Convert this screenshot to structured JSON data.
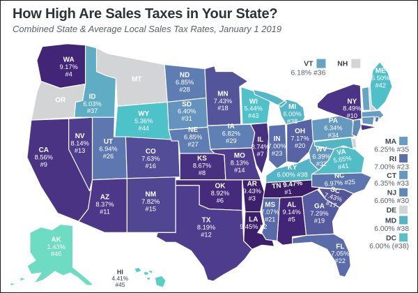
{
  "title": "How High Are Sales Taxes in Your State?",
  "subtitle": "Combined State & Average Local Sales Tax Rates, January 1 2019",
  "colors": {
    "background": "#ffffff",
    "frame_border": "#1a1a1a",
    "state_border": "#ffffff",
    "no_tax_gray": "#d2d4d6",
    "title": "#2e3339",
    "subtitle": "#5a6169",
    "map_label": "#ffffff",
    "hi_label": "#3f464d",
    "legend_abbr": "#3d434b",
    "legend_value": "#5a6169"
  },
  "map": {
    "states": [
      {
        "id": "WA",
        "abbr": "WA",
        "rate": "9.17%",
        "rank": "#4",
        "color": "#422577",
        "label_lines": [
          "WA",
          "9.17%",
          "#4"
        ]
      },
      {
        "id": "OR",
        "abbr": "OR",
        "rate": "",
        "rank": "",
        "color": "#d2d4d6",
        "label_lines": [
          "OR"
        ]
      },
      {
        "id": "CA",
        "abbr": "CA",
        "rate": "8.56%",
        "rank": "#9",
        "color": "#4a3383",
        "label_lines": [
          "CA",
          "8.56%",
          "#9"
        ]
      },
      {
        "id": "NV",
        "abbr": "NV",
        "rate": "8.14%",
        "rank": "#13",
        "color": "#4e3d8d",
        "label_lines": [
          "NV",
          "8.14%",
          "#13"
        ]
      },
      {
        "id": "ID",
        "abbr": "ID",
        "rate": "6.03%",
        "rank": "#37",
        "color": "#5fadc5",
        "label_lines": [
          "ID",
          "6.03%",
          "#37"
        ]
      },
      {
        "id": "MT",
        "abbr": "MT",
        "rate": "",
        "rank": "",
        "color": "#d2d4d6",
        "label_lines": [
          "MT"
        ]
      },
      {
        "id": "WY",
        "abbr": "WY",
        "rate": "5.36%",
        "rank": "#44",
        "color": "#4ec2c9",
        "label_lines": [
          "WY",
          "5.36%",
          "#44"
        ]
      },
      {
        "id": "UT",
        "abbr": "UT",
        "rate": "6.94%",
        "rank": "#26",
        "color": "#5d78b1",
        "label_lines": [
          "UT",
          "6.94%",
          "#26"
        ]
      },
      {
        "id": "CO",
        "abbr": "CO",
        "rate": "7.63%",
        "rank": "#16",
        "color": "#534c96",
        "label_lines": [
          "CO",
          "7.63%",
          "#16"
        ]
      },
      {
        "id": "AZ",
        "abbr": "AZ",
        "rate": "8.37%",
        "rank": "#11",
        "color": "#4c3788",
        "label_lines": [
          "AZ",
          "8.37%",
          "#11"
        ]
      },
      {
        "id": "NM",
        "abbr": "NM",
        "rate": "7.82%",
        "rank": "#15",
        "color": "#514692",
        "label_lines": [
          "NM",
          "7.82%",
          "#15"
        ]
      },
      {
        "id": "ND",
        "abbr": "ND",
        "rate": "6.85%",
        "rank": "#28",
        "color": "#5e7eb3",
        "label_lines": [
          "ND",
          "6.85%",
          "#28"
        ]
      },
      {
        "id": "SD",
        "abbr": "SD",
        "rate": "6.40%",
        "rank": "#31",
        "color": "#6494bd",
        "label_lines": [
          "SD",
          "6.40%",
          "#31"
        ]
      },
      {
        "id": "NE",
        "abbr": "NE",
        "rate": "6.85%",
        "rank": "#27",
        "color": "#5e7eb3",
        "label_lines": [
          "NE",
          "6.85%",
          "#27"
        ]
      },
      {
        "id": "KS",
        "abbr": "KS",
        "rate": "8.67%",
        "rank": "#8",
        "color": "#493181",
        "label_lines": [
          "KS",
          "8.67%",
          "#8"
        ]
      },
      {
        "id": "OK",
        "abbr": "OK",
        "rate": "8.92%",
        "rank": "#6",
        "color": "#462b7d",
        "label_lines": [
          "OK",
          "8.92%",
          "#6"
        ]
      },
      {
        "id": "TX",
        "abbr": "TX",
        "rate": "8.19%",
        "rank": "#12",
        "color": "#4e3c8c",
        "label_lines": [
          "TX",
          "8.19%",
          "#12"
        ]
      },
      {
        "id": "MN",
        "abbr": "MN",
        "rate": "7.43%",
        "rank": "#18",
        "color": "#54549b",
        "label_lines": [
          "MN",
          "7.43%",
          "#18"
        ]
      },
      {
        "id": "WI",
        "abbr": "WI",
        "rate": "5.44%",
        "rank": "#43",
        "color": "#4fc1c8",
        "label_lines": [
          "WI",
          "5.44%",
          "#43"
        ]
      },
      {
        "id": "IA",
        "abbr": "IA",
        "rate": "6.82%",
        "rank": "#29",
        "color": "#5f80b4",
        "label_lines": [
          "IA",
          "6.82%",
          "#29"
        ]
      },
      {
        "id": "MO",
        "abbr": "MO",
        "rate": "8.13%",
        "rank": "#14",
        "color": "#4f3e8d",
        "label_lines": [
          "MO",
          "8.13%",
          "#14"
        ]
      },
      {
        "id": "AR",
        "abbr": "AR",
        "rate": "9.43%",
        "rank": "#3",
        "color": "#3d206c",
        "label_lines": [
          "AR",
          "9.43%",
          "#3"
        ]
      },
      {
        "id": "LA",
        "abbr": "LA",
        "rate": "9.45%",
        "rank": "#2",
        "color": "#3c1e6b",
        "label_lines": [
          "LA",
          "9.45% #2"
        ]
      },
      {
        "id": "IL",
        "abbr": "IL",
        "rate": "8.74%",
        "rank": "#7",
        "color": "#483080",
        "label_lines": [
          "IL",
          "8.74%",
          "#7"
        ]
      },
      {
        "id": "MI",
        "abbr": "MI",
        "rate": "6.00%",
        "rank": "#38",
        "color": "#53b5c5",
        "label_lines": [
          "MI",
          "6.00%",
          "#38"
        ]
      },
      {
        "id": "IN",
        "abbr": "IN",
        "rate": "7.00%",
        "rank": "#23",
        "color": "#5a6fac",
        "label_lines": [
          "IN",
          "7.00%",
          "#23"
        ]
      },
      {
        "id": "OH",
        "abbr": "OH",
        "rate": "7.17%",
        "rank": "#20",
        "color": "#5763a4",
        "label_lines": [
          "OH",
          "7.17%",
          "#20"
        ]
      },
      {
        "id": "KY",
        "abbr": "KY",
        "rate": "6.00%",
        "rank": "#38",
        "color": "#53b5c5",
        "label_lines": [
          "KY",
          "6.00% #38"
        ]
      },
      {
        "id": "TN",
        "abbr": "TN",
        "rate": "9.47%",
        "rank": "#1",
        "color": "#3b1d69",
        "label_lines": [
          "TN 9.47%",
          "#1"
        ]
      },
      {
        "id": "WV",
        "abbr": "WV",
        "rate": "6.39%",
        "rank": "#32",
        "color": "#6495bd",
        "label_lines": [
          "WV",
          "6.39%",
          "#32"
        ]
      },
      {
        "id": "VA",
        "abbr": "VA",
        "rate": "5.65%",
        "rank": "#41",
        "color": "#52bdc7",
        "label_lines": [
          "VA",
          "5.65%",
          "#41"
        ]
      },
      {
        "id": "NC",
        "abbr": "NC",
        "rate": "6.97%",
        "rank": "#25",
        "color": "#5c75af",
        "label_lines": [
          "NC",
          "6.97% #25"
        ]
      },
      {
        "id": "SC",
        "abbr": "SC",
        "rate": "7.43%",
        "rank": "#17",
        "color": "#54549b",
        "label_lines": [
          "SC",
          "7.43%",
          "#17"
        ]
      },
      {
        "id": "GA",
        "abbr": "GA",
        "rate": "7.29%",
        "rank": "#19",
        "color": "#565b9f",
        "label_lines": [
          "GA",
          "7.29%",
          "#19"
        ]
      },
      {
        "id": "AL",
        "abbr": "AL",
        "rate": "9.14%",
        "rank": "#5",
        "color": "#432578",
        "label_lines": [
          "AL",
          "9.14%",
          "#5"
        ]
      },
      {
        "id": "MS",
        "abbr": "MS",
        "rate": "7.07%",
        "rank": "#21",
        "color": "#596aa8",
        "label_lines": [
          "MS",
          "7.07%",
          "#21"
        ]
      },
      {
        "id": "FL",
        "abbr": "FL",
        "rate": "7.05%",
        "rank": "#22",
        "color": "#5a6caa",
        "label_lines": [
          "FL",
          "7.05%",
          "#22"
        ]
      },
      {
        "id": "PA",
        "abbr": "PA",
        "rate": "6.34%",
        "rank": "#34",
        "color": "#6699c0",
        "label_lines": [
          "PA",
          "6.34%",
          "#34"
        ]
      },
      {
        "id": "NY",
        "abbr": "NY",
        "rate": "8.49%",
        "rank": "#10",
        "color": "#4b3487",
        "label_lines": [
          "NY",
          "8.49%",
          "#10"
        ]
      },
      {
        "id": "VT",
        "abbr": "VT",
        "rate": "6.18%",
        "rank": "#36",
        "color": "#65a4c3",
        "label_lines": []
      },
      {
        "id": "NH",
        "abbr": "NH",
        "rate": "",
        "rank": "",
        "color": "#d2d4d6",
        "label_lines": []
      },
      {
        "id": "ME",
        "abbr": "ME",
        "rate": "5.50%",
        "rank": "#42",
        "color": "#50c0c8",
        "label_lines": [
          "ME",
          "5.50%",
          "#42"
        ]
      },
      {
        "id": "MA",
        "abbr": "MA",
        "rate": "6.25%",
        "rank": "#35",
        "color": "#679dc1",
        "label_lines": []
      },
      {
        "id": "CT",
        "abbr": "CT",
        "rate": "6.35%",
        "rank": "#33",
        "color": "#6598bf",
        "label_lines": []
      },
      {
        "id": "RI",
        "abbr": "RI",
        "rate": "7.00%",
        "rank": "#23",
        "color": "#5a6fac",
        "label_lines": []
      },
      {
        "id": "NJ",
        "abbr": "NJ",
        "rate": "6.60%",
        "rank": "#30",
        "color": "#6189b8",
        "label_lines": []
      },
      {
        "id": "DE",
        "abbr": "DE",
        "rate": "",
        "rank": "",
        "color": "#d2d4d6",
        "label_lines": []
      },
      {
        "id": "MD",
        "abbr": "MD",
        "rate": "6.00%",
        "rank": "#38",
        "color": "#54b6c5",
        "label_lines": []
      },
      {
        "id": "AK",
        "abbr": "AK",
        "rate": "1.43%",
        "rank": "#46",
        "color": "#6edcc3",
        "label_lines": [
          "AK",
          "1.43%",
          "#46"
        ]
      },
      {
        "id": "HI",
        "abbr": "HI",
        "rate": "4.41%",
        "rank": "#45",
        "color": "#59cfc6",
        "label_lines": [
          "HI",
          "4.41%",
          "#45"
        ]
      }
    ]
  },
  "legend_top": [
    {
      "id": "VT",
      "abbr": "VT",
      "detail": "6.18% #36",
      "color": "#65a4c3"
    },
    {
      "id": "NH",
      "abbr": "NH",
      "detail": "",
      "color": "#d2d4d6"
    }
  ],
  "legend_right": [
    {
      "id": "MA",
      "abbr": "MA",
      "detail": "6.25% #35",
      "color": "#679dc1"
    },
    {
      "id": "RI",
      "abbr": "RI",
      "detail": "7.00% #23",
      "color": "#5a6fac"
    },
    {
      "id": "CT",
      "abbr": "CT",
      "detail": "6.35% #33",
      "color": "#6598bf"
    },
    {
      "id": "NJ",
      "abbr": "NJ",
      "detail": "6.60% #30",
      "color": "#6189b8"
    },
    {
      "id": "DE",
      "abbr": "DE",
      "detail": "",
      "color": "#d2d4d6"
    },
    {
      "id": "MD",
      "abbr": "MD",
      "detail": "6.00% #38",
      "color": "#54b6c5"
    },
    {
      "id": "DC",
      "abbr": "DC",
      "detail": "6.00% (#38)",
      "color": "#5ac0c6"
    }
  ],
  "chart_data": {
    "type": "heatmap",
    "subtype": "us-state-choropleth",
    "title": "How High Are Sales Taxes in Your State?",
    "subtitle": "Combined State & Average Local Sales Tax Rates, January 1 2019",
    "unit": "percent",
    "value_range": [
      1.43,
      9.47
    ],
    "color_scale": [
      "#6edcc3",
      "#4ec2c9",
      "#53b5c5",
      "#6699c0",
      "#5e7eb3",
      "#5a6fac",
      "#54549b",
      "#4e3c8c",
      "#462b7d",
      "#3b1d69"
    ],
    "no_data_color": "#d2d4d6",
    "points": [
      {
        "state": "TN",
        "rate": 9.47,
        "rank": 1
      },
      {
        "state": "LA",
        "rate": 9.45,
        "rank": 2
      },
      {
        "state": "AR",
        "rate": 9.43,
        "rank": 3
      },
      {
        "state": "WA",
        "rate": 9.17,
        "rank": 4
      },
      {
        "state": "AL",
        "rate": 9.14,
        "rank": 5
      },
      {
        "state": "OK",
        "rate": 8.92,
        "rank": 6
      },
      {
        "state": "IL",
        "rate": 8.74,
        "rank": 7
      },
      {
        "state": "KS",
        "rate": 8.67,
        "rank": 8
      },
      {
        "state": "CA",
        "rate": 8.56,
        "rank": 9
      },
      {
        "state": "NY",
        "rate": 8.49,
        "rank": 10
      },
      {
        "state": "AZ",
        "rate": 8.37,
        "rank": 11
      },
      {
        "state": "TX",
        "rate": 8.19,
        "rank": 12
      },
      {
        "state": "NV",
        "rate": 8.14,
        "rank": 13
      },
      {
        "state": "MO",
        "rate": 8.13,
        "rank": 14
      },
      {
        "state": "NM",
        "rate": 7.82,
        "rank": 15
      },
      {
        "state": "CO",
        "rate": 7.63,
        "rank": 16
      },
      {
        "state": "SC",
        "rate": 7.43,
        "rank": 17
      },
      {
        "state": "MN",
        "rate": 7.43,
        "rank": 18
      },
      {
        "state": "GA",
        "rate": 7.29,
        "rank": 19
      },
      {
        "state": "OH",
        "rate": 7.17,
        "rank": 20
      },
      {
        "state": "MS",
        "rate": 7.07,
        "rank": 21
      },
      {
        "state": "FL",
        "rate": 7.05,
        "rank": 22
      },
      {
        "state": "IN",
        "rate": 7.0,
        "rank": 23
      },
      {
        "state": "RI",
        "rate": 7.0,
        "rank": 23
      },
      {
        "state": "NC",
        "rate": 6.97,
        "rank": 25
      },
      {
        "state": "UT",
        "rate": 6.94,
        "rank": 26
      },
      {
        "state": "NE",
        "rate": 6.85,
        "rank": 27
      },
      {
        "state": "ND",
        "rate": 6.85,
        "rank": 28
      },
      {
        "state": "IA",
        "rate": 6.82,
        "rank": 29
      },
      {
        "state": "NJ",
        "rate": 6.6,
        "rank": 30
      },
      {
        "state": "SD",
        "rate": 6.4,
        "rank": 31
      },
      {
        "state": "WV",
        "rate": 6.39,
        "rank": 32
      },
      {
        "state": "CT",
        "rate": 6.35,
        "rank": 33
      },
      {
        "state": "PA",
        "rate": 6.34,
        "rank": 34
      },
      {
        "state": "MA",
        "rate": 6.25,
        "rank": 35
      },
      {
        "state": "VT",
        "rate": 6.18,
        "rank": 36
      },
      {
        "state": "ID",
        "rate": 6.03,
        "rank": 37
      },
      {
        "state": "KY",
        "rate": 6.0,
        "rank": 38
      },
      {
        "state": "MI",
        "rate": 6.0,
        "rank": 38
      },
      {
        "state": "MD",
        "rate": 6.0,
        "rank": 38
      },
      {
        "state": "DC",
        "rate": 6.0,
        "rank": 38
      },
      {
        "state": "VA",
        "rate": 5.65,
        "rank": 41
      },
      {
        "state": "ME",
        "rate": 5.5,
        "rank": 42
      },
      {
        "state": "WI",
        "rate": 5.44,
        "rank": 43
      },
      {
        "state": "WY",
        "rate": 5.36,
        "rank": 44
      },
      {
        "state": "HI",
        "rate": 4.41,
        "rank": 45
      },
      {
        "state": "AK",
        "rate": 1.43,
        "rank": 46
      },
      {
        "state": "OR",
        "rate": null,
        "rank": null
      },
      {
        "state": "MT",
        "rate": null,
        "rank": null
      },
      {
        "state": "NH",
        "rate": null,
        "rank": null
      },
      {
        "state": "DE",
        "rate": null,
        "rank": null
      }
    ]
  }
}
